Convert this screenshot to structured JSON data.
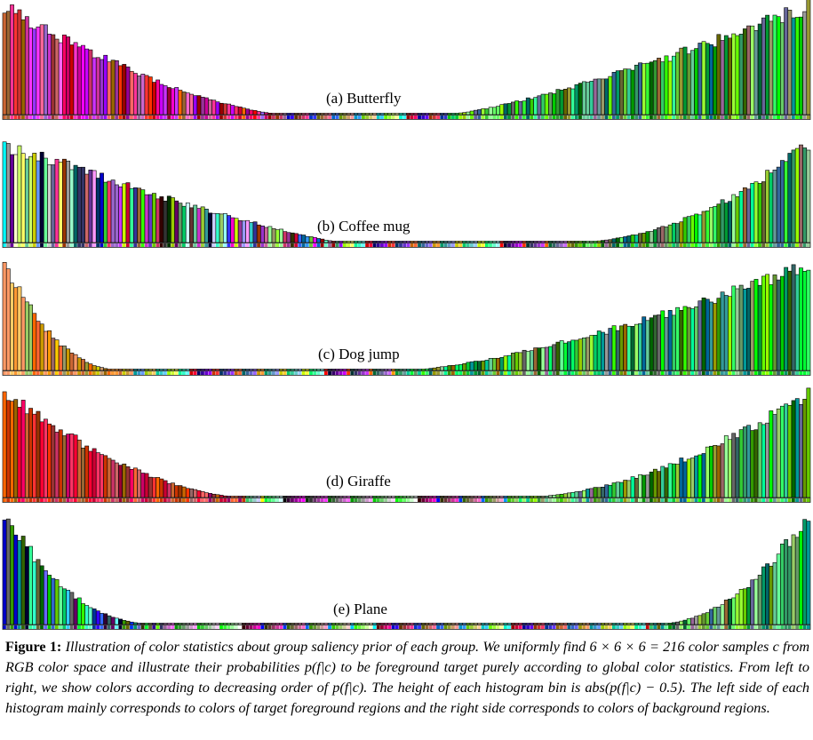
{
  "figure": {
    "panels": [
      {
        "label": "(a) Butterfly"
      },
      {
        "label": "(b) Coffee mug"
      },
      {
        "label": "(c) Dog jump"
      },
      {
        "label": "(d) Giraffe"
      },
      {
        "label": "(e) Plane"
      }
    ]
  },
  "caption": {
    "label": "Figure 1:",
    "text": "Illustration of color statistics about group saliency prior of each group. We uniformly find 6 × 6 × 6 = 216 color samples c from RGB color space and illustrate their probabilities p(f|c) to be foreground target purely according to global color statistics. From left to right, we show colors according to decreasing order of p(f|c). The height of each histogram bin is abs(p(f|c) − 0.5). The left side of each histogram mainly corresponds to colors of target foreground regions and the right side corresponds to colors of background regions."
  }
}
